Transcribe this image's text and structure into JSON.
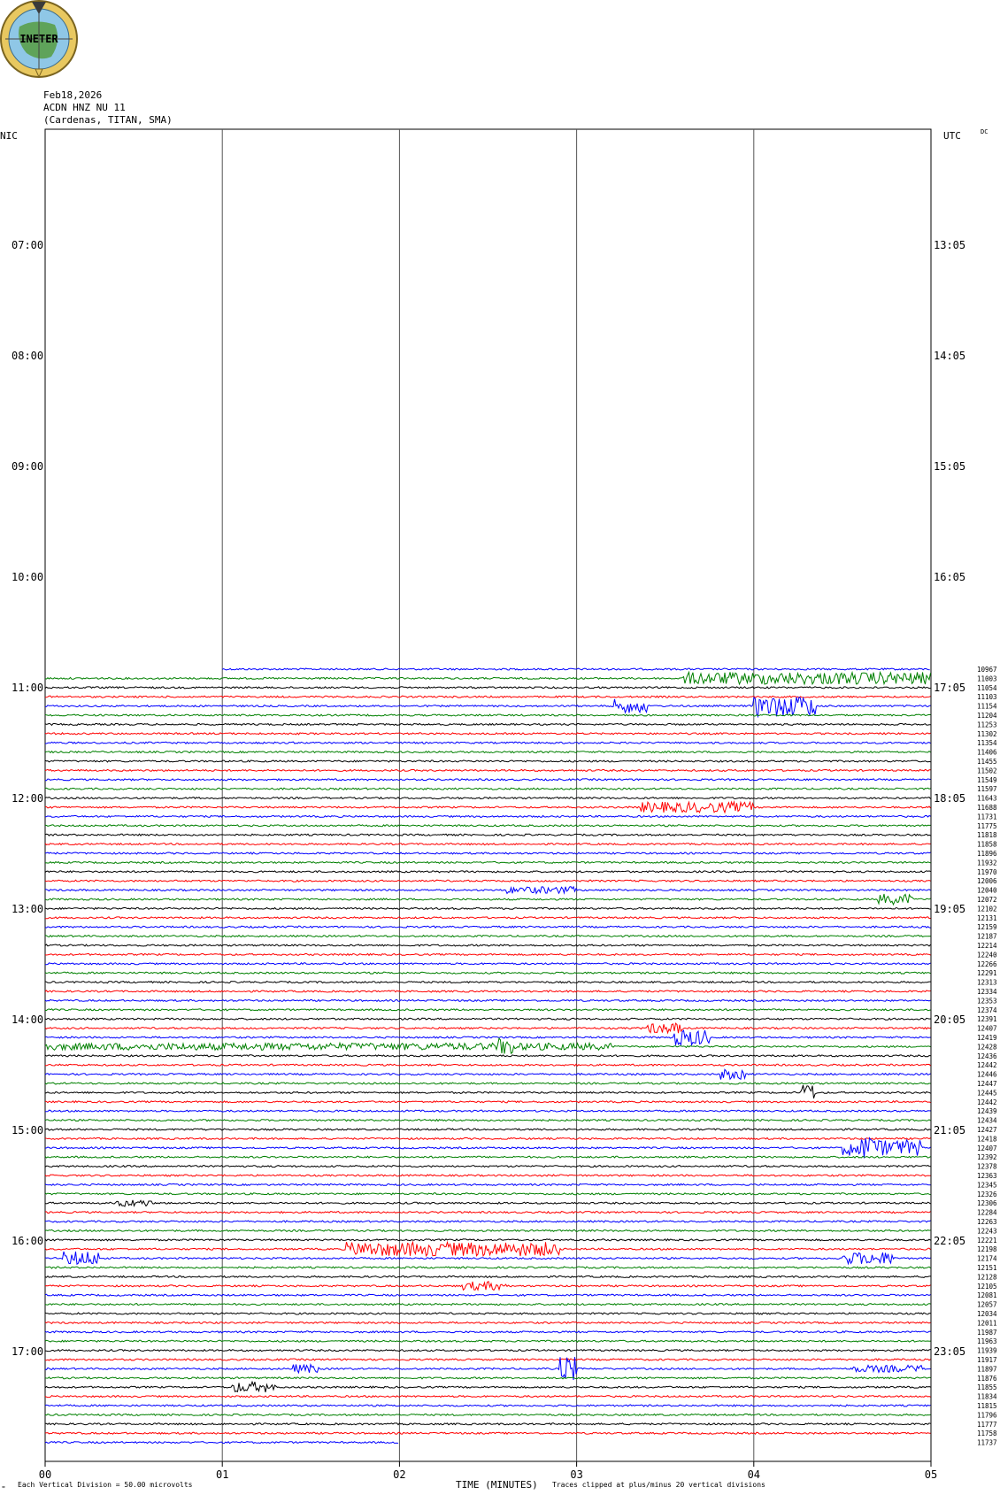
{
  "header": {
    "logo_text": "INETER",
    "date": "Feb18,2026",
    "station": "ACDN HNZ NU 11",
    "location": "(Cardenas, TITAN, SMA)"
  },
  "corner_labels": {
    "left": "NIC",
    "right": "UTC",
    "dc": "DC"
  },
  "footer": {
    "scale_note": "Each Vertical Division =   50.00 microvolts",
    "xaxis_title": "TIME (MINUTES)",
    "clip_note": "Traces clipped at plus/minus 20 vertical divisions"
  },
  "colors": {
    "trace_cycle": [
      "#0000ff",
      "#008000",
      "#000000",
      "#ff0000"
    ],
    "grid": "#000000"
  },
  "chart_data": {
    "type": "line",
    "title": "ACDN HNZ NU 11",
    "xlabel": "TIME (MINUTES)",
    "xlim": [
      0,
      5
    ],
    "x_ticks": [
      "00",
      "01",
      "02",
      "03",
      "04",
      "05"
    ],
    "left_time_labels": [
      "07:00",
      "08:00",
      "09:00",
      "10:00",
      "11:00",
      "12:00",
      "13:00",
      "14:00",
      "15:00",
      "16:00",
      "17:00"
    ],
    "right_time_labels": [
      "13:05",
      "14:05",
      "15:05",
      "16:05",
      "17:05",
      "18:05",
      "19:05",
      "20:05",
      "21:05",
      "22:05",
      "23:05"
    ],
    "first_trace_start_minute": 1,
    "last_trace_end_minute": 2,
    "trace_levels": [
      10967,
      11003,
      11054,
      11103,
      11154,
      11204,
      11253,
      11302,
      11354,
      11406,
      11455,
      11502,
      11549,
      11597,
      11643,
      11688,
      11731,
      11775,
      11818,
      11858,
      11896,
      11932,
      11970,
      12006,
      12040,
      12072,
      12102,
      12131,
      12159,
      12187,
      12214,
      12240,
      12266,
      12291,
      12313,
      12334,
      12353,
      12374,
      12391,
      12407,
      12419,
      12428,
      12436,
      12442,
      12446,
      12447,
      12445,
      12442,
      12439,
      12434,
      12427,
      12418,
      12407,
      12392,
      12378,
      12363,
      12345,
      12326,
      12306,
      12284,
      12263,
      12243,
      12221,
      12198,
      12174,
      12151,
      12128,
      12105,
      12081,
      12057,
      12034,
      12011,
      11987,
      11963,
      11939,
      11917,
      11897,
      11876,
      11855,
      11834,
      11815,
      11796,
      11777,
      11758,
      11737
    ]
  }
}
